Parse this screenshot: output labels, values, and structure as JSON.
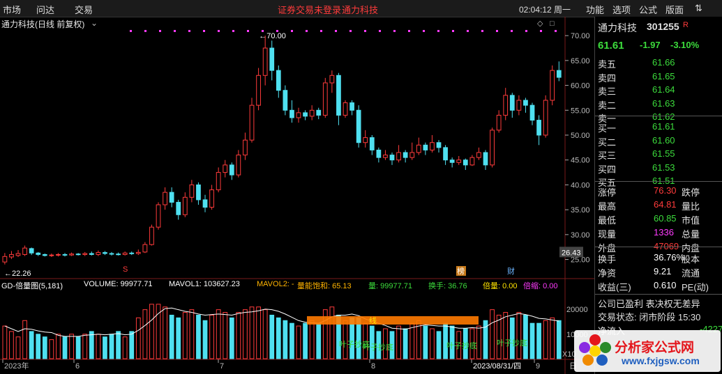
{
  "menu": {
    "left": [
      "市场",
      "问达",
      "交易"
    ],
    "notice": "证券交易未登录",
    "stock_link": "通力科技",
    "clock": "02:04:12 周一",
    "right": [
      "功能",
      "选项",
      "公式",
      "版面"
    ]
  },
  "chart_header": {
    "title": "通力科技(日线 前复权)"
  },
  "main_axis": {
    "ticks": [
      "70.00",
      "65.00",
      "60.00",
      "55.00",
      "50.00",
      "45.00",
      "40.00",
      "35.00",
      "30.00",
      "25.00"
    ],
    "tick_values": [
      70,
      65,
      60,
      55,
      50,
      45,
      40,
      35,
      30,
      25
    ],
    "current_tag": "26.43",
    "high_mark": "70.00",
    "low_mark": "22.26"
  },
  "event_marks": [
    "S",
    "榜",
    "财"
  ],
  "indicator": {
    "name": "GD-倍量图(5,181)",
    "volume": "VOLUME: 99977.71",
    "mavol1": "MAVOL1: 103627.23",
    "mavol2": "MAVOL2: -",
    "saturation": "量能饱和: 65.13",
    "liang": "量: 99977.71",
    "turnover": "换手: 36.76",
    "beiliang": "倍量: 0.00",
    "beisuo": "倍缩: 0.00",
    "axis_20000": "20000",
    "axis_10000": "10000",
    "axis_x10": "X10",
    "band_text": "线",
    "annotations": [
      "叶子抄底",
      "叶子抄底",
      "叶子抄底",
      "叶子抄底"
    ]
  },
  "x_axis": {
    "labels": [
      "2023年",
      "6",
      "7",
      "8",
      "2023/08/31/四",
      "9"
    ],
    "period": "日"
  },
  "quote": {
    "name": "通力科技",
    "code": "301255",
    "r_flag": "R",
    "price": "61.61",
    "change": "-1.97",
    "pct": "-3.10%",
    "asks": [
      {
        "label": "卖五",
        "price": "61.66"
      },
      {
        "label": "卖四",
        "price": "61.65"
      },
      {
        "label": "卖三",
        "price": "61.64"
      },
      {
        "label": "卖二",
        "price": "61.63"
      },
      {
        "label": "卖一",
        "price": "61.62"
      }
    ],
    "bids": [
      {
        "label": "买一",
        "price": "61.61"
      },
      {
        "label": "买二",
        "price": "61.60"
      },
      {
        "label": "买三",
        "price": "61.55"
      },
      {
        "label": "买四",
        "price": "61.53"
      },
      {
        "label": "买五",
        "price": "61.51"
      }
    ],
    "stats": [
      {
        "l1": "涨停",
        "v1": "76.30",
        "l2": "跌停"
      },
      {
        "l1": "最高",
        "v1": "64.81",
        "l2": "量比"
      },
      {
        "l1": "最低",
        "v1": "60.85",
        "l2": "市值"
      },
      {
        "l1": "现量",
        "v1": "1336",
        "l2": "总量"
      },
      {
        "l1": "外盘",
        "v1": "47069",
        "l2": "内盘"
      }
    ],
    "stats2": [
      {
        "l1": "换手",
        "v1": "36.76%",
        "l2": "股本"
      },
      {
        "l1": "净资",
        "v1": "9.21",
        "l2": "流通"
      },
      {
        "l1": "收益(三)",
        "v1": "0.610",
        "l2": "PE(动)"
      }
    ],
    "info1": "公司已盈利 表决权无差异",
    "info2": "交易状态: 闭市阶段 15:30",
    "flow_label": "净流入",
    "flow_value": "-4227"
  },
  "watermark": {
    "text1": "分析家公式网",
    "text2": "www.fxjgsw.com"
  },
  "colors": {
    "up": "#ff3b3b",
    "down": "#4fe0f0",
    "accent": "#ff3bff"
  },
  "chart_data": {
    "type": "candlestick",
    "title": "通力科技(日线 前复权)",
    "ylim": [
      22,
      71
    ],
    "candles": [
      [
        24.5,
        25.6,
        24.0,
        26.3
      ],
      [
        25.5,
        26.0,
        25.1,
        26.7
      ],
      [
        25.8,
        26.2,
        25.5,
        26.9
      ],
      [
        26.0,
        27.3,
        25.7,
        27.8
      ],
      [
        27.2,
        26.3,
        25.9,
        27.4
      ],
      [
        26.3,
        26.0,
        25.7,
        26.5
      ],
      [
        26.0,
        25.8,
        25.6,
        26.2
      ],
      [
        25.8,
        25.9,
        25.5,
        26.2
      ],
      [
        25.9,
        26.0,
        25.6,
        26.3
      ],
      [
        26.0,
        25.9,
        25.6,
        26.3
      ],
      [
        25.9,
        26.1,
        25.7,
        26.4
      ],
      [
        26.1,
        26.0,
        25.8,
        26.3
      ],
      [
        26.0,
        26.2,
        25.7,
        26.5
      ],
      [
        26.2,
        26.0,
        25.8,
        26.6
      ],
      [
        26.0,
        26.4,
        25.7,
        26.8
      ],
      [
        26.4,
        26.2,
        25.9,
        26.7
      ],
      [
        26.2,
        26.1,
        25.8,
        26.5
      ],
      [
        26.1,
        26.0,
        25.8,
        26.4
      ],
      [
        26.0,
        26.3,
        25.8,
        26.6
      ],
      [
        26.3,
        26.2,
        25.9,
        26.6
      ],
      [
        26.2,
        26.43,
        25.9,
        27.0
      ],
      [
        26.5,
        28.0,
        26.3,
        28.5
      ],
      [
        28.0,
        31.5,
        27.8,
        32.0
      ],
      [
        31.5,
        36.0,
        31.0,
        36.5
      ],
      [
        36.0,
        38.5,
        35.0,
        39.5
      ],
      [
        38.5,
        36.5,
        35.5,
        39.5
      ],
      [
        36.5,
        34.0,
        33.0,
        37.0
      ],
      [
        34.0,
        37.5,
        33.5,
        38.5
      ],
      [
        37.5,
        40.0,
        36.5,
        41.0
      ],
      [
        40.0,
        37.0,
        36.0,
        40.5
      ],
      [
        37.0,
        35.5,
        34.5,
        38.0
      ],
      [
        35.5,
        39.0,
        35.0,
        40.0
      ],
      [
        39.0,
        42.5,
        38.5,
        43.5
      ],
      [
        42.5,
        44.0,
        41.5,
        45.0
      ],
      [
        44.0,
        42.0,
        41.0,
        44.5
      ],
      [
        42.0,
        46.0,
        41.5,
        47.0
      ],
      [
        46.0,
        49.0,
        45.0,
        50.5
      ],
      [
        49.0,
        56.0,
        48.5,
        57.5
      ],
      [
        56.0,
        62.0,
        55.0,
        63.5
      ],
      [
        62.0,
        67.5,
        60.0,
        70.0
      ],
      [
        67.5,
        63.0,
        61.0,
        69.0
      ],
      [
        63.0,
        59.0,
        57.5,
        64.0
      ],
      [
        59.0,
        55.0,
        54.0,
        60.0
      ],
      [
        55.0,
        53.5,
        52.5,
        57.0
      ],
      [
        53.5,
        54.5,
        52.5,
        55.5
      ],
      [
        54.5,
        53.8,
        53.0,
        55.0
      ],
      [
        53.8,
        55.0,
        53.0,
        56.0
      ],
      [
        55.0,
        54.0,
        53.2,
        55.5
      ],
      [
        54.0,
        60.5,
        53.5,
        61.5
      ],
      [
        60.5,
        62.0,
        58.5,
        63.0
      ],
      [
        62.0,
        54.0,
        52.0,
        62.5
      ],
      [
        54.0,
        56.5,
        53.5,
        57.0
      ],
      [
        56.5,
        55.0,
        54.0,
        57.0
      ],
      [
        55.0,
        48.5,
        47.5,
        56.0
      ],
      [
        48.5,
        49.5,
        47.5,
        51.0
      ],
      [
        49.5,
        47.0,
        46.0,
        50.0
      ],
      [
        47.0,
        45.5,
        44.5,
        47.5
      ],
      [
        45.5,
        46.0,
        45.0,
        47.0
      ],
      [
        46.0,
        45.0,
        44.0,
        46.5
      ],
      [
        45.0,
        46.5,
        44.5,
        48.0
      ],
      [
        46.5,
        45.5,
        44.5,
        47.0
      ],
      [
        45.5,
        46.5,
        45.0,
        48.5
      ],
      [
        46.5,
        48.0,
        46.0,
        49.5
      ],
      [
        48.0,
        47.0,
        46.0,
        48.5
      ],
      [
        47.0,
        48.5,
        46.5,
        50.0
      ],
      [
        48.5,
        47.5,
        46.5,
        49.0
      ],
      [
        47.5,
        45.0,
        44.0,
        48.0
      ],
      [
        45.0,
        44.5,
        43.5,
        45.5
      ],
      [
        44.5,
        45.0,
        44.0,
        45.8
      ],
      [
        45.0,
        44.0,
        43.0,
        45.3
      ],
      [
        44.0,
        45.5,
        43.8,
        46.0
      ],
      [
        45.5,
        46.5,
        45.0,
        47.5
      ],
      [
        46.5,
        44.0,
        43.0,
        47.0
      ],
      [
        44.0,
        51.0,
        43.5,
        51.5
      ],
      [
        51.0,
        54.0,
        50.5,
        55.0
      ],
      [
        54.0,
        58.0,
        53.0,
        59.5
      ],
      [
        58.0,
        55.0,
        53.5,
        58.5
      ],
      [
        55.0,
        57.0,
        54.0,
        58.0
      ],
      [
        57.0,
        56.0,
        54.5,
        57.5
      ],
      [
        56.0,
        53.0,
        52.0,
        56.5
      ],
      [
        53.0,
        50.0,
        48.0,
        54.0
      ],
      [
        50.0,
        57.0,
        49.5,
        58.0
      ],
      [
        57.0,
        63.0,
        56.0,
        64.0
      ],
      [
        63.0,
        61.61,
        60.85,
        64.81
      ]
    ],
    "volume_bars": [
      1.2,
      1.0,
      0.8,
      1.4,
      1.0,
      0.9,
      0.8,
      0.7,
      0.9,
      0.8,
      0.9,
      0.8,
      0.9,
      1.0,
      0.9,
      0.8,
      0.9,
      1.0,
      0.8,
      1.0,
      1.5,
      1.8,
      2.0,
      2.0,
      1.9,
      1.6,
      1.5,
      1.7,
      1.8,
      1.6,
      1.4,
      1.6,
      1.8,
      1.7,
      1.5,
      1.7,
      1.8,
      1.9,
      1.9,
      1.8,
      1.6,
      1.5,
      1.4,
      1.3,
      1.2,
      1.3,
      1.4,
      1.3,
      1.8,
      1.9,
      1.6,
      1.4,
      1.5,
      1.5,
      1.3,
      1.2,
      1.0,
      1.1,
      1.0,
      1.2,
      1.1,
      1.3,
      1.4,
      1.2,
      1.1,
      1.0,
      1.3,
      1.2,
      1.0,
      1.1,
      1.1,
      1.2,
      1.4,
      1.8,
      1.6,
      1.7,
      1.5,
      1.7,
      1.6,
      1.3,
      1.3,
      1.4,
      1.5,
      1.4
    ]
  }
}
